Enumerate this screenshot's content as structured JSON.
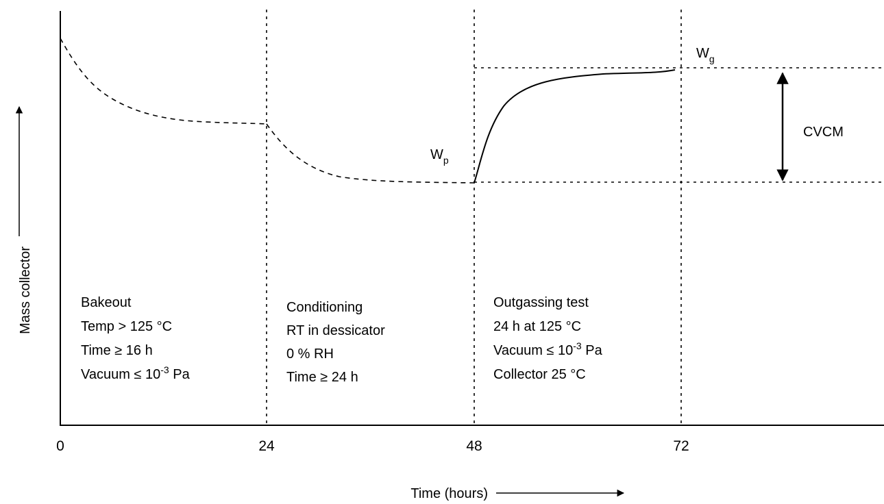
{
  "axes": {
    "x_label": "Time (hours)",
    "y_label": "Mass collector",
    "x_ticks": [
      "0",
      "24",
      "48",
      "72"
    ]
  },
  "phases": [
    {
      "lines": [
        {
          "text": "Bakeout"
        },
        {
          "text": "Temp > 125 °C"
        },
        {
          "text": "Time ≥ 16 h"
        },
        {
          "text": "Vacuum ≤ 10",
          "sup": "-3",
          "after": " Pa"
        }
      ]
    },
    {
      "lines": [
        {
          "text": "Conditioning"
        },
        {
          "text": "RT in dessicator"
        },
        {
          "text": "0 % RH"
        },
        {
          "text": "Time ≥ 24 h"
        }
      ]
    },
    {
      "lines": [
        {
          "text": "Outgassing test"
        },
        {
          "text": "24 h at 125 °C"
        },
        {
          "text": "Vacuum ≤ 10",
          "sup": "-3",
          "after": " Pa"
        },
        {
          "text": "Collector 25 °C"
        }
      ]
    }
  ],
  "markers": {
    "wp": {
      "main": "W",
      "sub": "p"
    },
    "wg": {
      "main": "W",
      "sub": "g"
    },
    "cvcm": "CVCM"
  }
}
